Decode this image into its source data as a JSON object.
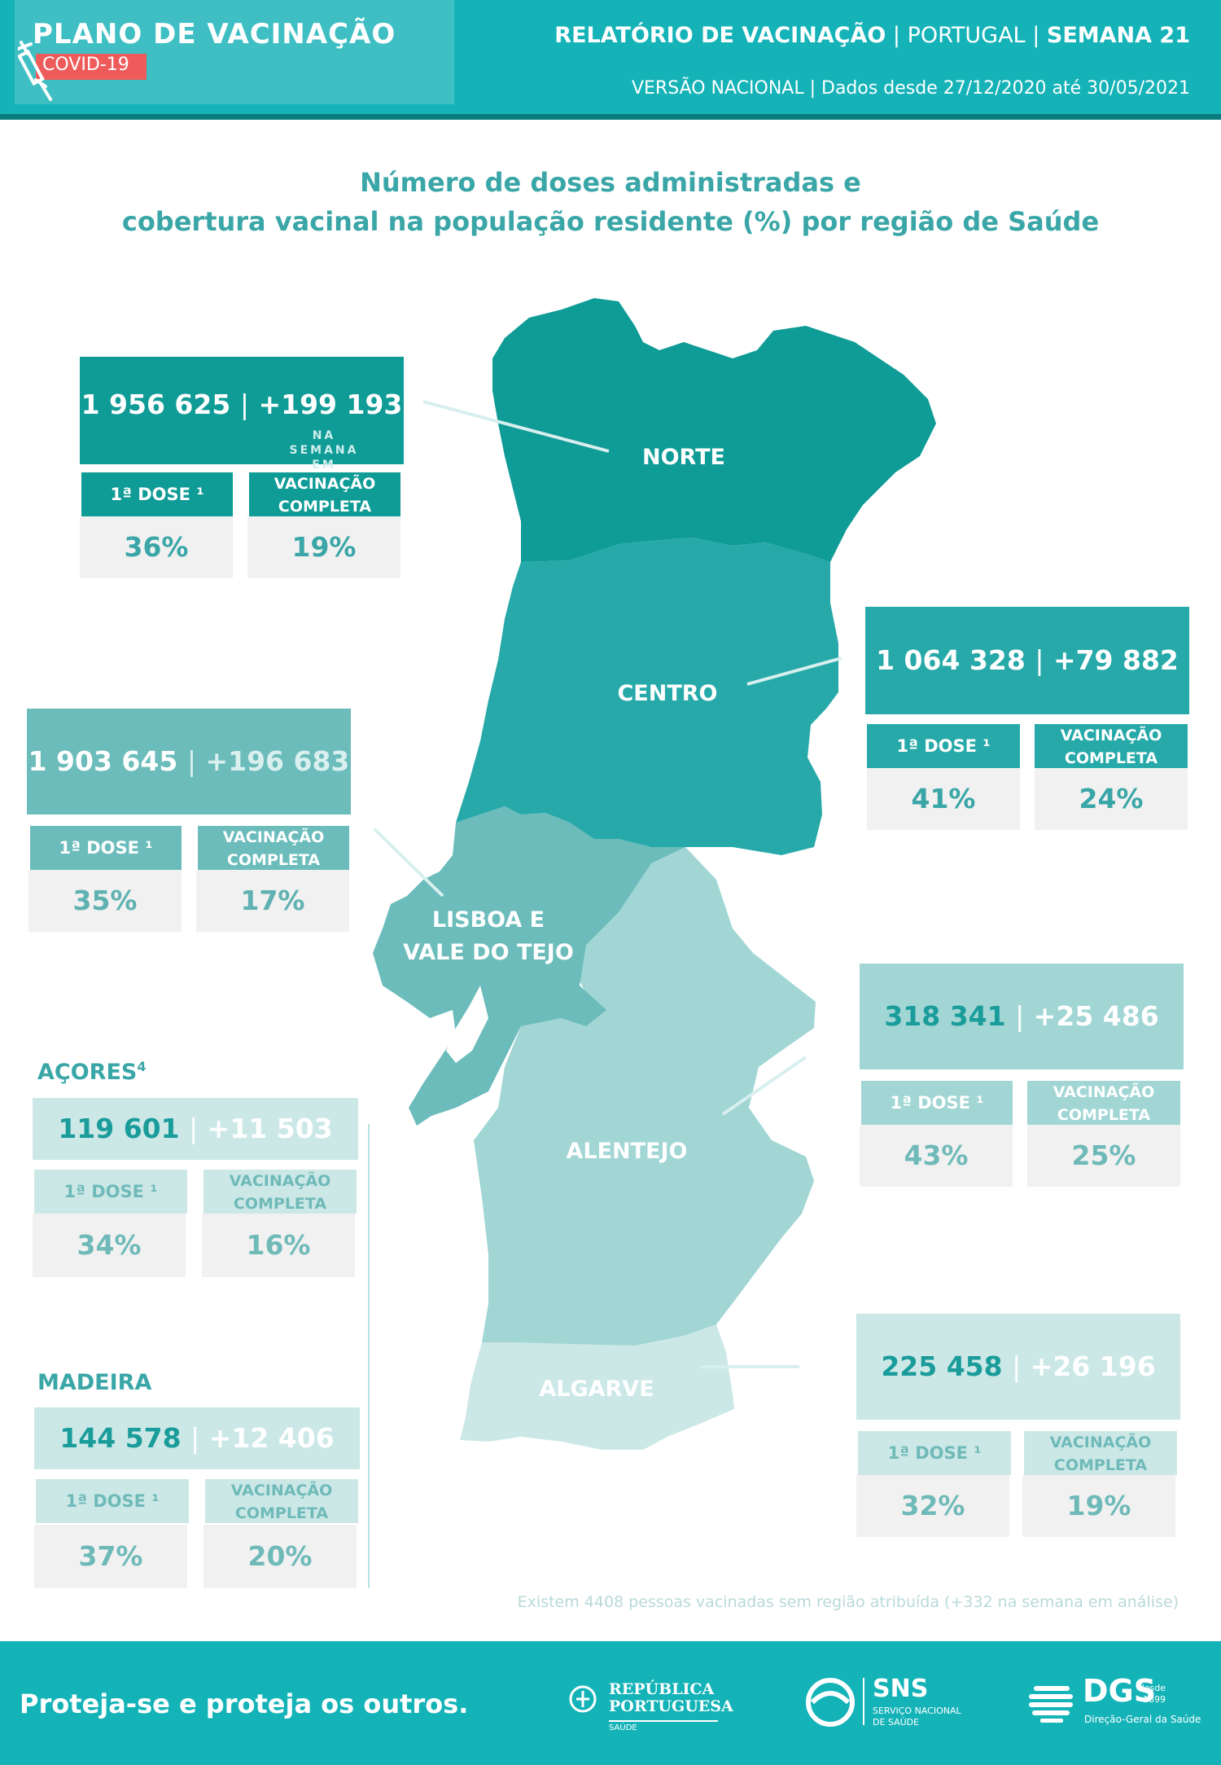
{
  "header": {
    "plan_title": "PLANO DE VACINAÇÃO",
    "badge": "COVID-19",
    "report_prefix": "RELATÓRIO DE VACINAÇÃO",
    "report_sep1": " | ",
    "report_country": "PORTUGAL",
    "report_sep2": " | ",
    "report_week": "SEMANA 21",
    "subtitle": "VERSÃO NACIONAL | Dados desde 27/12/2020 até  30/05/2021"
  },
  "heading": {
    "line1": "Número de doses administradas e",
    "line2": "cobertura vacinal na população residente (%) por região de Saúde"
  },
  "labels": {
    "sep": "|",
    "first_dose": "1ª DOSE ¹",
    "complete_line1": "VACINAÇÃO",
    "complete_line2": "COMPLETA",
    "week_note_line1": "NA SEMANA",
    "week_note_line2": "EM ANÁLISE"
  },
  "map_labels": {
    "norte": "NORTE",
    "centro": "CENTRO",
    "lvt_line1": "LISBOA E",
    "lvt_line2": "VALE DO TEJO",
    "alentejo": "ALENTEJO",
    "algarve": "ALGARVE"
  },
  "regions": {
    "norte": {
      "total": "1 956 625",
      "week": "+199 193",
      "first_dose": "36%",
      "complete": "19%"
    },
    "centro": {
      "total": "1 064 328",
      "week": "+79 882",
      "first_dose": "41%",
      "complete": "24%"
    },
    "lvt": {
      "total": "1 903 645",
      "week": "+196 683",
      "first_dose": "35%",
      "complete": "17%"
    },
    "alentejo": {
      "total": "318 341",
      "week": "+25 486",
      "first_dose": "43%",
      "complete": "25%"
    },
    "algarve": {
      "total": "225 458",
      "week": "+26 196",
      "first_dose": "32%",
      "complete": "19%"
    },
    "acores": {
      "title": "AÇORES",
      "title_sup": "4",
      "total": "119 601",
      "week": "+11 503",
      "first_dose": "34%",
      "complete": "16%"
    },
    "madeira": {
      "title": "MADEIRA",
      "total": "144 578",
      "week": "+12 406",
      "first_dose": "37%",
      "complete": "20%"
    }
  },
  "footnote": "Existem 4408 pessoas vacinadas sem região atribuída (+332 na semana em análise)",
  "footer": {
    "slogan": "Proteja-se e proteja os outros.",
    "rep_line1": "REPÚBLICA",
    "rep_line2": "PORTUGUESA",
    "rep_line3": "SAÚDE",
    "sns_title": "SNS",
    "sns_line1": "SERVIÇO NACIONAL",
    "sns_line2": "DE SAÚDE",
    "dgs_title": "DGS",
    "dgs_since": "desde",
    "dgs_year": "1899",
    "dgs_sub": "Direção-Geral da Saúde"
  },
  "colors": {
    "norte": "#0f9b96",
    "centro": "#27a9a9",
    "lvt": "#6bbcbb",
    "alentejo": "#a1d6d4",
    "algarve": "#cbe8e7",
    "accent": "#15b3b8",
    "text_teal": "#3aa6a7"
  }
}
